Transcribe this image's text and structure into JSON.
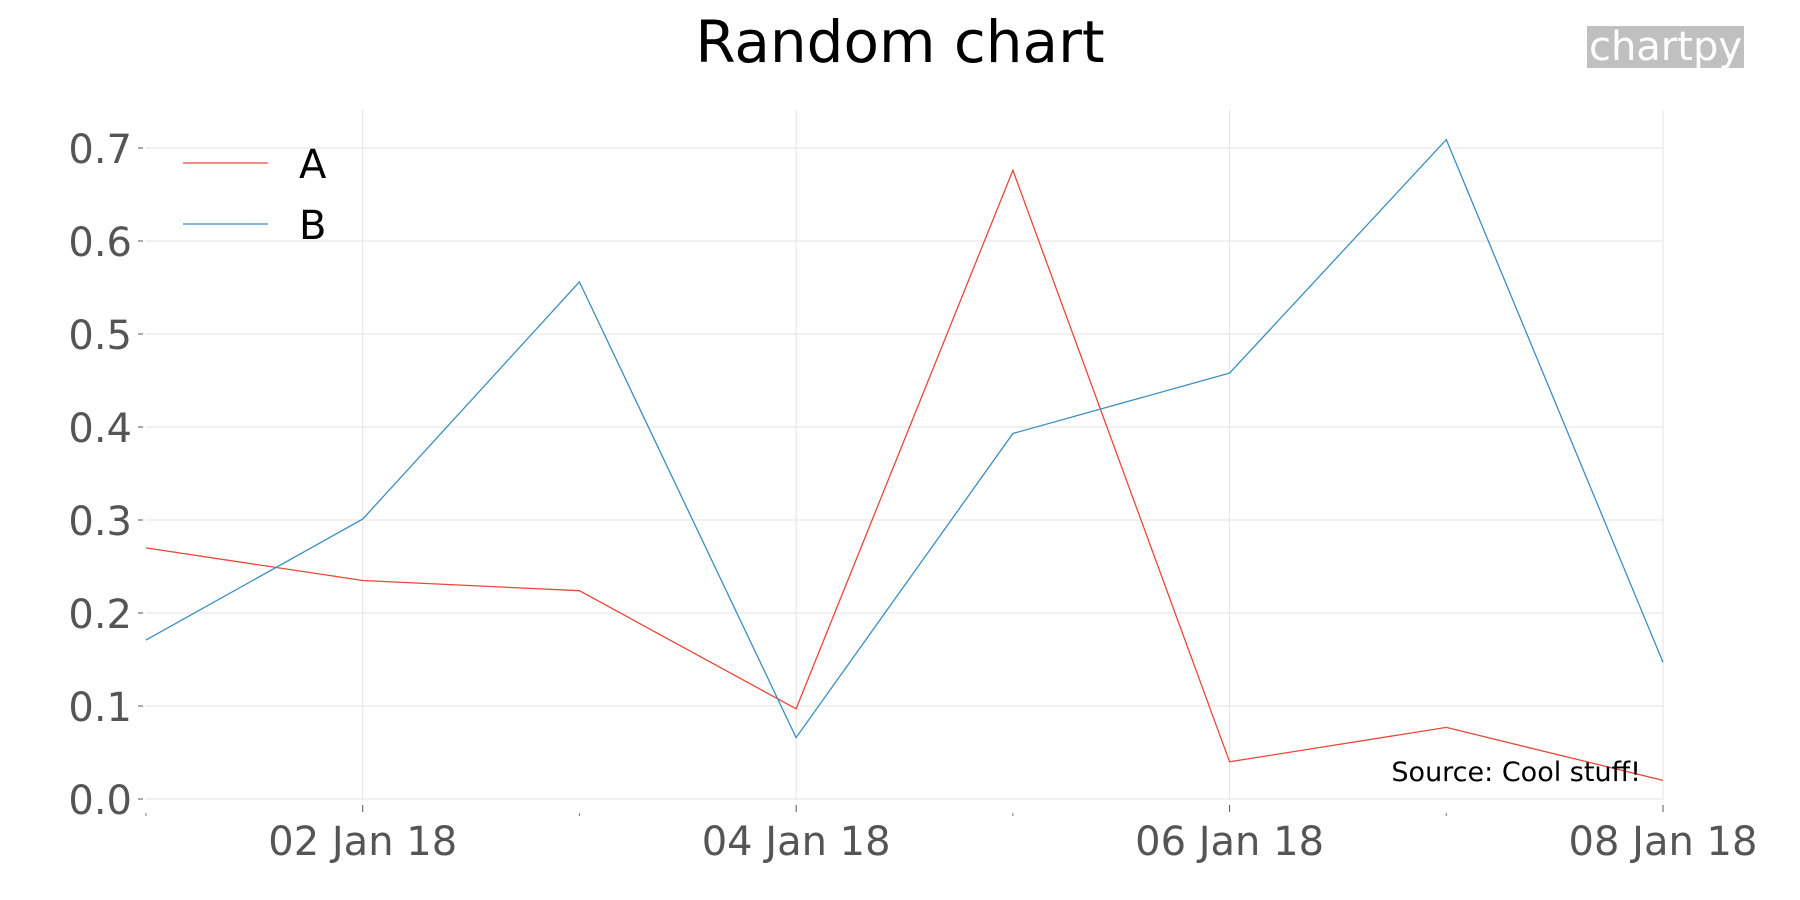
{
  "chart_data": {
    "type": "line",
    "title": "Random chart",
    "watermark": "chartpy",
    "source": "Source: Cool stuff!",
    "xlabel": "",
    "ylabel": "",
    "x": [
      "2018-01-01",
      "2018-01-02",
      "2018-01-03",
      "2018-01-04",
      "2018-01-05",
      "2018-01-06",
      "2018-01-07",
      "2018-01-08"
    ],
    "xticks_major": [
      {
        "date": "2018-01-02",
        "label": "02 Jan 18"
      },
      {
        "date": "2018-01-04",
        "label": "04 Jan 18"
      },
      {
        "date": "2018-01-06",
        "label": "06 Jan 18"
      },
      {
        "date": "2018-01-08",
        "label": "08 Jan 18"
      }
    ],
    "xticks_minor": [
      "2018-01-01",
      "2018-01-03",
      "2018-01-05",
      "2018-01-07"
    ],
    "yticks": [
      "0.0",
      "0.1",
      "0.2",
      "0.3",
      "0.4",
      "0.5",
      "0.6",
      "0.7"
    ],
    "ylim": [
      0,
      0.7
    ],
    "grid": true,
    "legend_position": "top-left",
    "series": [
      {
        "name": "A",
        "color": "#e8483a",
        "values": [
          0.27,
          0.235,
          0.224,
          0.097,
          0.676,
          0.04,
          0.077,
          0.02
        ]
      },
      {
        "name": "B",
        "color": "#3a8ec0",
        "values": [
          0.171,
          0.301,
          0.556,
          0.066,
          0.393,
          0.458,
          0.709,
          0.147
        ]
      }
    ]
  }
}
